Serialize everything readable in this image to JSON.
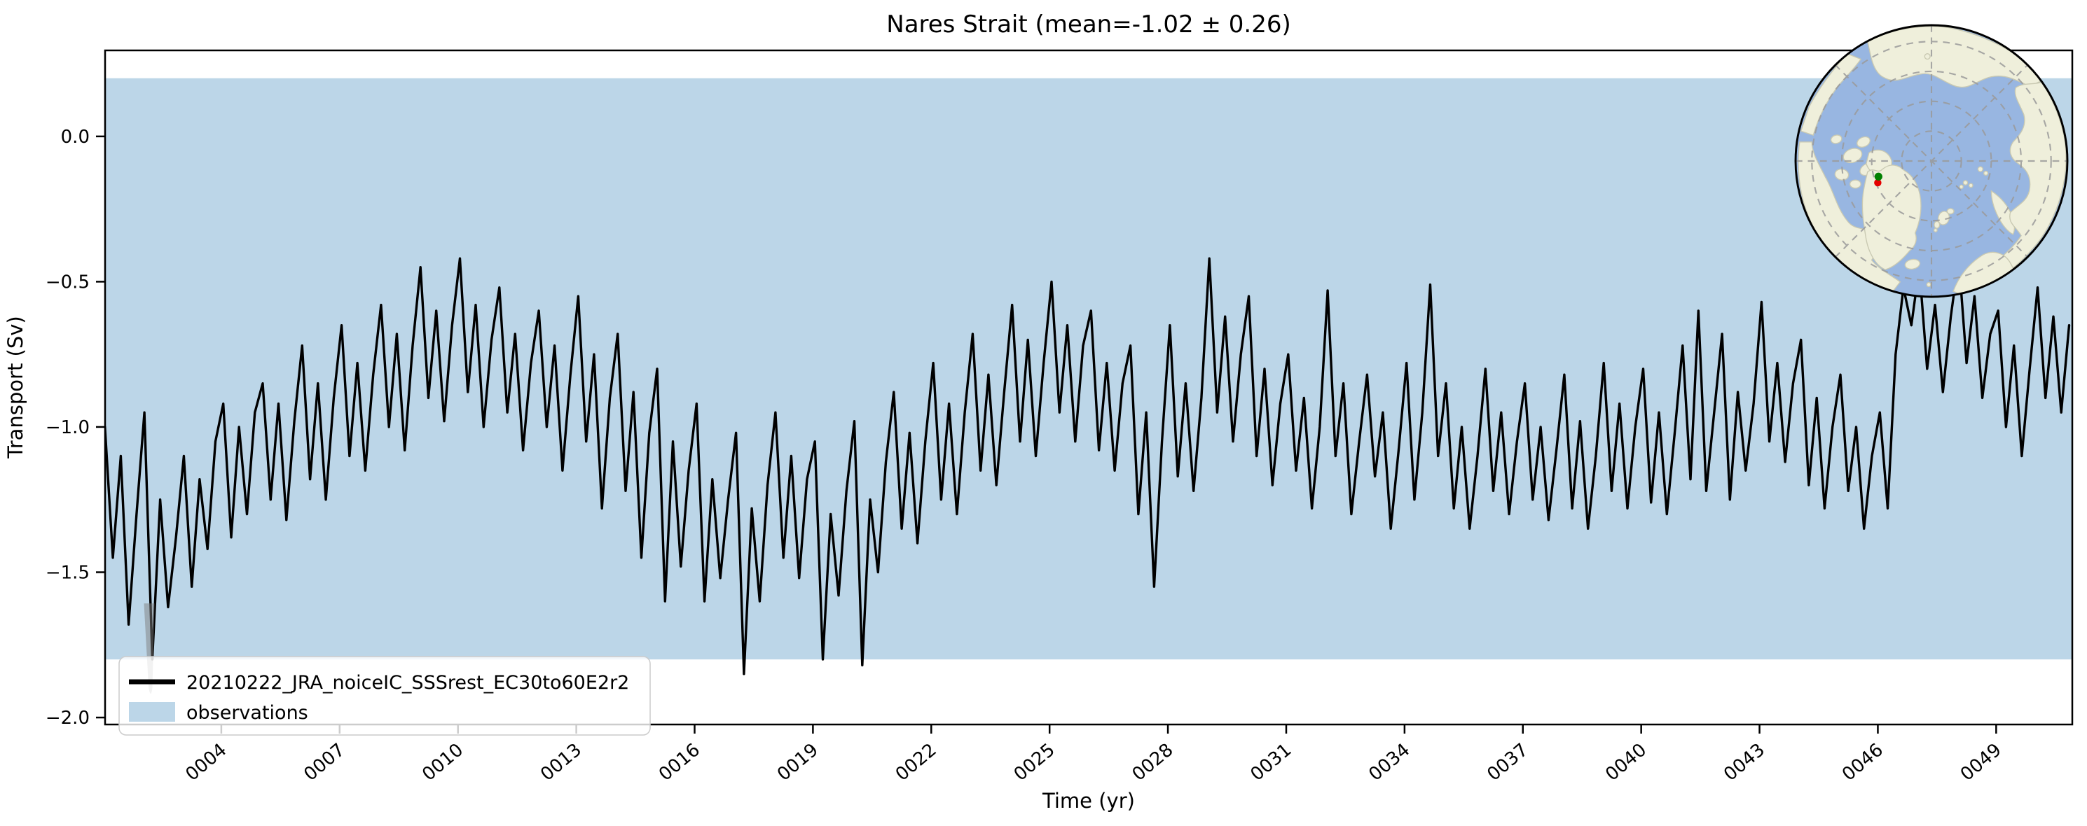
{
  "title": "Nares Strait (mean=-1.02 ± 0.26)",
  "axes": {
    "xlabel": "Time (yr)",
    "ylabel": "Transport (Sv)",
    "x_ticks": [
      {
        "year": 4,
        "label": "0004"
      },
      {
        "year": 7,
        "label": "0007"
      },
      {
        "year": 10,
        "label": "0010"
      },
      {
        "year": 13,
        "label": "0013"
      },
      {
        "year": 16,
        "label": "0016"
      },
      {
        "year": 19,
        "label": "0019"
      },
      {
        "year": 22,
        "label": "0022"
      },
      {
        "year": 25,
        "label": "0025"
      },
      {
        "year": 28,
        "label": "0028"
      },
      {
        "year": 31,
        "label": "0031"
      },
      {
        "year": 34,
        "label": "0034"
      },
      {
        "year": 37,
        "label": "0037"
      },
      {
        "year": 40,
        "label": "0040"
      },
      {
        "year": 43,
        "label": "0043"
      },
      {
        "year": 46,
        "label": "0046"
      },
      {
        "year": 49,
        "label": "0049"
      }
    ],
    "y_ticks": [
      {
        "value": 0.0,
        "label": "0.0"
      },
      {
        "value": -0.5,
        "label": "−0.5"
      },
      {
        "value": -1.0,
        "label": "−1.0"
      },
      {
        "value": -1.5,
        "label": "−1.5"
      },
      {
        "value": -2.0,
        "label": "−2.0"
      }
    ]
  },
  "legend": {
    "entries": [
      {
        "label": "20210222_JRA_noiceIC_SSSrest_EC30to60E2r2",
        "type": "line",
        "color": "#000000"
      },
      {
        "label": "observations",
        "type": "patch",
        "color": "#bcd6e8"
      }
    ]
  },
  "inset": {
    "ocean_color": "#98b6e1",
    "land_color": "#efefdb",
    "land_edge_color": "#c9c9b2",
    "graticule_color": "#9a9a9a",
    "marker_green": "#008000",
    "marker_red": "#e50000"
  },
  "chart_data": {
    "type": "line",
    "title": "Nares Strait (mean=-1.02 ± 0.26)",
    "xlabel": "Time (yr)",
    "ylabel": "Transport (Sv)",
    "xlim": [
      1.053,
      50.93
    ],
    "ylim": [
      -2.024,
      0.296
    ],
    "grid": false,
    "legend_position": "lower left",
    "mean": -1.02,
    "std": 0.26,
    "bands": [
      {
        "name": "observations",
        "ymin": -1.8,
        "ymax": 0.2,
        "color": "#bcd6e8"
      }
    ],
    "x_start": 1.05,
    "x_step": 0.2,
    "series": [
      {
        "name": "20210222_JRA_noiceIC_SSSrest_EC30to60E2r2",
        "color": "#000000",
        "values": [
          -1.0,
          -1.45,
          -1.1,
          -1.68,
          -1.3,
          -0.95,
          -1.8,
          -1.25,
          -1.62,
          -1.38,
          -1.1,
          -1.55,
          -1.18,
          -1.42,
          -1.05,
          -0.92,
          -1.38,
          -1.0,
          -1.3,
          -0.95,
          -0.85,
          -1.25,
          -0.92,
          -1.32,
          -0.98,
          -0.72,
          -1.18,
          -0.85,
          -1.25,
          -0.9,
          -0.65,
          -1.1,
          -0.78,
          -1.15,
          -0.82,
          -0.58,
          -1.0,
          -0.68,
          -1.08,
          -0.72,
          -0.45,
          -0.9,
          -0.6,
          -0.98,
          -0.65,
          -0.42,
          -0.88,
          -0.58,
          -1.0,
          -0.7,
          -0.52,
          -0.95,
          -0.68,
          -1.08,
          -0.78,
          -0.6,
          -1.0,
          -0.72,
          -1.15,
          -0.82,
          -0.55,
          -1.05,
          -0.75,
          -1.28,
          -0.9,
          -0.68,
          -1.22,
          -0.88,
          -1.45,
          -1.02,
          -0.8,
          -1.6,
          -1.05,
          -1.48,
          -1.15,
          -0.92,
          -1.6,
          -1.18,
          -1.52,
          -1.25,
          -1.02,
          -1.85,
          -1.28,
          -1.6,
          -1.2,
          -0.95,
          -1.45,
          -1.1,
          -1.52,
          -1.18,
          -1.05,
          -1.8,
          -1.3,
          -1.58,
          -1.22,
          -0.98,
          -1.82,
          -1.25,
          -1.5,
          -1.12,
          -0.88,
          -1.35,
          -1.02,
          -1.4,
          -1.05,
          -0.78,
          -1.25,
          -0.92,
          -1.3,
          -0.95,
          -0.68,
          -1.15,
          -0.82,
          -1.2,
          -0.88,
          -0.58,
          -1.05,
          -0.7,
          -1.1,
          -0.78,
          -0.5,
          -0.95,
          -0.65,
          -1.05,
          -0.72,
          -0.6,
          -1.08,
          -0.78,
          -1.15,
          -0.85,
          -0.72,
          -1.3,
          -0.95,
          -1.55,
          -1.05,
          -0.65,
          -1.17,
          -0.85,
          -1.22,
          -0.9,
          -0.42,
          -0.95,
          -0.62,
          -1.05,
          -0.75,
          -0.55,
          -1.1,
          -0.8,
          -1.2,
          -0.92,
          -0.75,
          -1.15,
          -0.9,
          -1.28,
          -1.0,
          -0.53,
          -1.1,
          -0.85,
          -1.3,
          -1.05,
          -0.82,
          -1.17,
          -0.95,
          -1.35,
          -1.08,
          -0.78,
          -1.25,
          -0.95,
          -0.51,
          -1.1,
          -0.85,
          -1.28,
          -1.0,
          -1.35,
          -1.1,
          -0.8,
          -1.22,
          -0.95,
          -1.3,
          -1.05,
          -0.85,
          -1.25,
          -1.0,
          -1.32,
          -1.08,
          -0.82,
          -1.28,
          -0.98,
          -1.35,
          -1.1,
          -0.78,
          -1.22,
          -0.92,
          -1.28,
          -1.0,
          -0.8,
          -1.26,
          -0.95,
          -1.3,
          -1.02,
          -0.72,
          -1.18,
          -0.6,
          -1.22,
          -0.95,
          -0.68,
          -1.25,
          -0.88,
          -1.15,
          -0.92,
          -0.57,
          -1.05,
          -0.78,
          -1.12,
          -0.85,
          -0.7,
          -1.2,
          -0.9,
          -1.28,
          -1.0,
          -0.82,
          -1.22,
          -1.0,
          -1.35,
          -1.1,
          -0.95,
          -1.28,
          -0.75,
          -0.52,
          -0.65,
          -0.45,
          -0.8,
          -0.58,
          -0.88,
          -0.62,
          -0.42,
          -0.78,
          -0.55,
          -0.9,
          -0.68,
          -0.6,
          -1.0,
          -0.72,
          -1.1,
          -0.8,
          -0.52,
          -0.9,
          -0.62,
          -0.95,
          -0.65
        ]
      }
    ]
  }
}
